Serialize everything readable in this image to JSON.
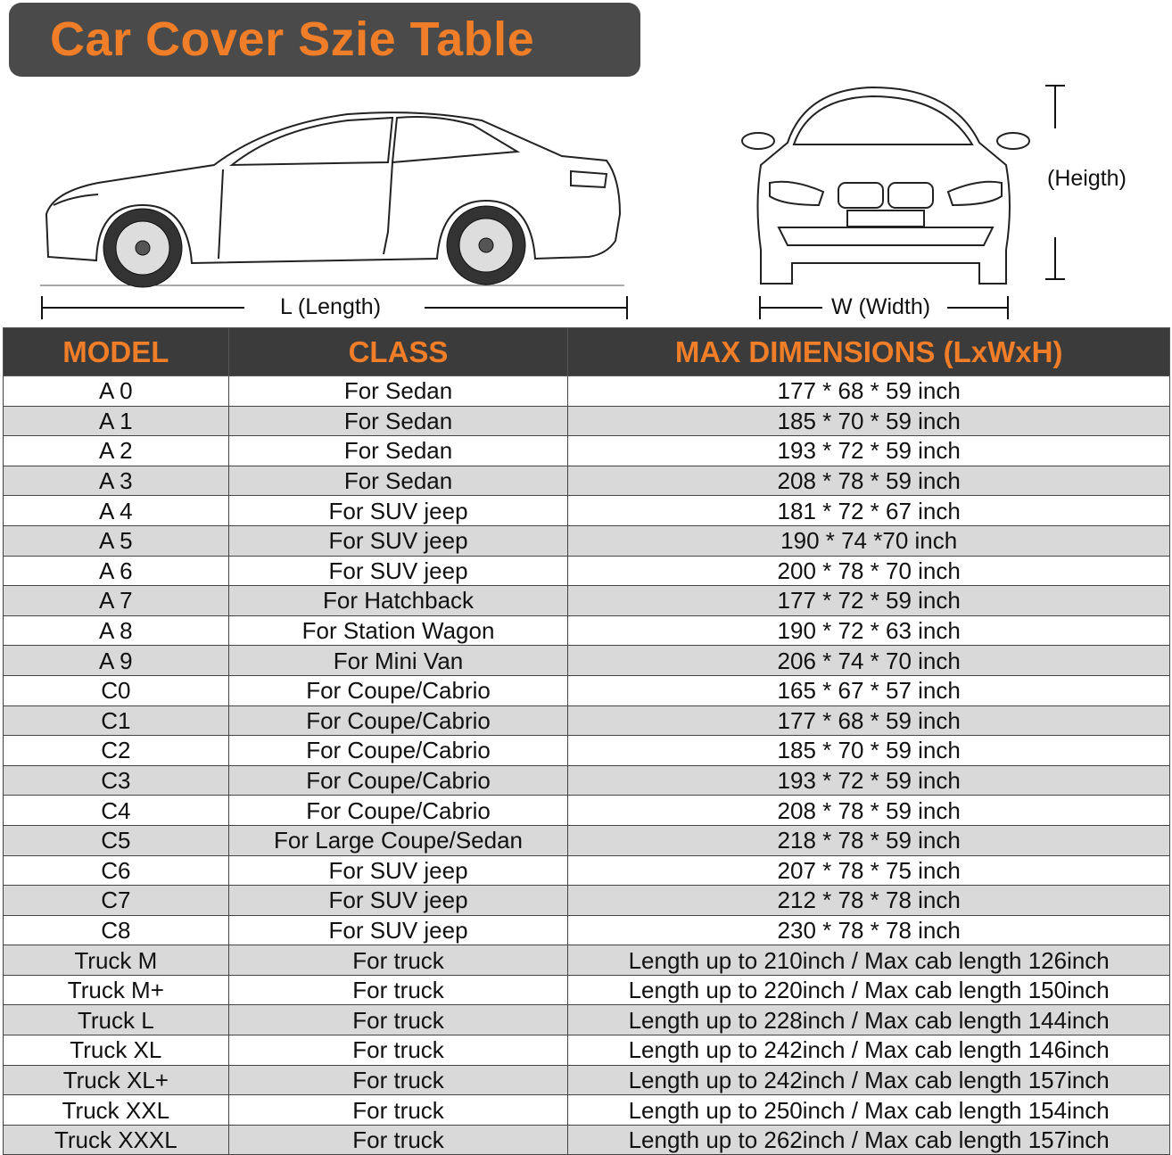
{
  "title": "Car Cover Szie Table",
  "colors": {
    "accent": "#f07d27",
    "header_bg": "#3b3b3b",
    "banner_bg": "#4a4a4a",
    "row_alt": "#d9d9d9"
  },
  "diagram": {
    "length_label": "L (Length)",
    "width_label": "W (Width)",
    "height_label": "(Heigth)"
  },
  "table": {
    "headers": [
      "MODEL",
      "CLASS",
      "MAX DIMENSIONS (LxWxH)"
    ],
    "rows": [
      [
        "A 0",
        "For Sedan",
        "177 * 68 * 59 inch"
      ],
      [
        "A 1",
        "For Sedan",
        "185 * 70 * 59 inch"
      ],
      [
        "A 2",
        "For Sedan",
        "193 * 72 * 59 inch"
      ],
      [
        "A 3",
        "For Sedan",
        "208 * 78 * 59 inch"
      ],
      [
        "A 4",
        "For SUV jeep",
        "181 * 72 * 67 inch"
      ],
      [
        "A 5",
        "For SUV jeep",
        "190 * 74  *70 inch"
      ],
      [
        "A 6",
        "For SUV jeep",
        "200 * 78 * 70 inch"
      ],
      [
        "A 7",
        "For Hatchback",
        "177 * 72 * 59 inch"
      ],
      [
        "A 8",
        "For Station Wagon",
        "190 * 72 * 63 inch"
      ],
      [
        "A 9",
        "For Mini Van",
        "206 * 74 * 70 inch"
      ],
      [
        "C0",
        "For Coupe/Cabrio",
        "165 * 67 * 57 inch"
      ],
      [
        "C1",
        "For Coupe/Cabrio",
        "177 * 68 * 59 inch"
      ],
      [
        "C2",
        "For Coupe/Cabrio",
        "185 * 70 * 59 inch"
      ],
      [
        "C3",
        "For Coupe/Cabrio",
        "193 * 72 * 59 inch"
      ],
      [
        "C4",
        "For Coupe/Cabrio",
        "208 * 78 * 59 inch"
      ],
      [
        "C5",
        "For Large Coupe/Sedan",
        "218 * 78 * 59 inch"
      ],
      [
        "C6",
        "For SUV jeep",
        "207 * 78 * 75 inch"
      ],
      [
        "C7",
        "For SUV jeep",
        "212 * 78 * 78 inch"
      ],
      [
        "C8",
        "For SUV jeep",
        "230 * 78 * 78 inch"
      ],
      [
        "Truck M",
        "For truck",
        "Length up to 210inch / Max cab length 126inch"
      ],
      [
        "Truck M+",
        "For truck",
        "Length up to 220inch / Max cab length 150inch"
      ],
      [
        "Truck L",
        "For truck",
        "Length up to 228inch / Max cab length 144inch"
      ],
      [
        "Truck XL",
        "For truck",
        "Length up to 242inch / Max cab length 146inch"
      ],
      [
        "Truck XL+",
        "For truck",
        "Length up to 242inch / Max cab length 157inch"
      ],
      [
        "Truck XXL",
        "For truck",
        "Length up to 250inch / Max cab length 154inch"
      ],
      [
        "Truck XXXL",
        "For truck",
        "Length up to 262inch / Max cab length 157inch"
      ]
    ]
  }
}
